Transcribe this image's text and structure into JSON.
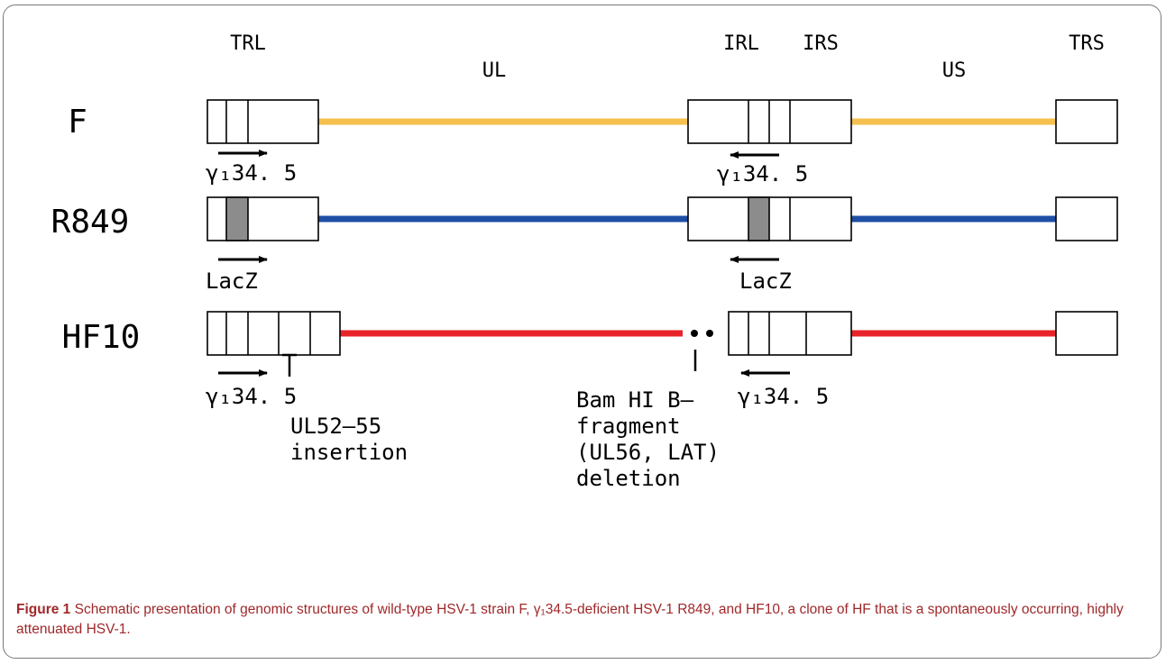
{
  "regions": {
    "trl": "TRL",
    "ul": "UL",
    "irl": "IRL",
    "irs": "IRS",
    "us": "US",
    "trs": "TRS"
  },
  "rows": [
    {
      "strain": "F",
      "line_color": "#f5c04e",
      "left_label": "γ₁34. 5",
      "right_label": "γ₁34. 5"
    },
    {
      "strain": "R849",
      "line_color": "#1f4fa5",
      "left_label": "LacZ",
      "right_label": "LacZ"
    },
    {
      "strain": "HF10",
      "line_color": "#e8232a",
      "left_label": "γ₁34. 5",
      "right_label": "γ₁34. 5",
      "insertion_label": [
        "UL52–55",
        "insertion"
      ],
      "deletion_label": [
        "Bam HI B–",
        "fragment",
        "(UL56, LAT)",
        "deletion"
      ]
    }
  ],
  "colors": {
    "lacz_fill": "#8c8c8c",
    "caption": "#a0282a",
    "frame": "#7a7a7a"
  },
  "caption": {
    "label": "Figure 1",
    "text": "Schematic presentation of genomic structures of wild-type HSV-1 strain F, γ₁34.5-deficient HSV-1 R849, and HF10, a clone of HF that is a spontaneously occurring, highly attenuated HSV-1."
  }
}
